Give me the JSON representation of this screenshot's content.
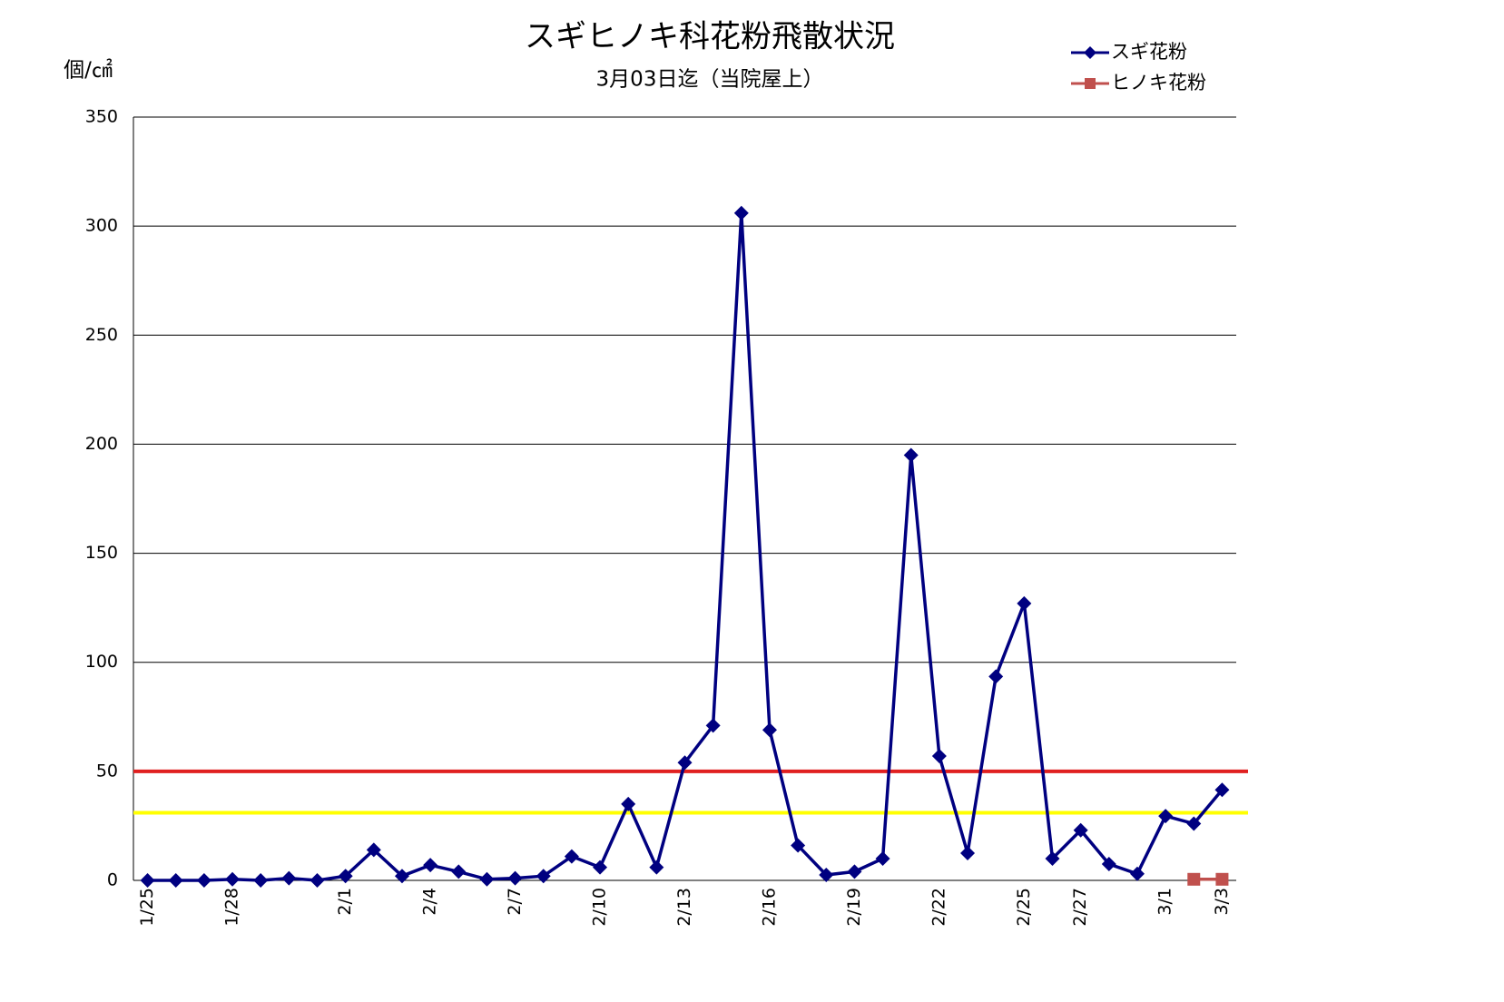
{
  "chart_data": {
    "type": "line",
    "title": "スギヒノキ科花粉飛散状況",
    "subtitle": "3月03日迄（当院屋上）",
    "y_label": "個/㎠",
    "categories": [
      "1/25",
      null,
      null,
      "1/28",
      null,
      null,
      null,
      "2/1",
      null,
      null,
      "2/4",
      null,
      null,
      "2/7",
      null,
      null,
      "2/10",
      null,
      null,
      "2/13",
      null,
      null,
      "2/16",
      null,
      null,
      "2/19",
      null,
      null,
      "2/22",
      null,
      null,
      "2/25",
      null,
      "2/27",
      null,
      null,
      "3/1",
      null,
      "3/3"
    ],
    "series": [
      {
        "name": "スギ花粉",
        "color": "#000080",
        "marker": "diamond",
        "values": [
          0,
          0,
          0,
          0.5,
          0,
          1,
          0,
          2,
          14,
          2,
          7,
          4,
          0.5,
          1,
          2,
          11,
          6,
          35,
          6,
          54,
          71,
          306,
          69,
          16,
          2.5,
          4,
          10,
          195,
          57,
          12.5,
          93.5,
          127,
          10,
          23,
          7.5,
          3,
          29.5,
          26,
          41.5
        ]
      },
      {
        "name": "ヒノキ花粉",
        "color": "#c0504d",
        "marker": "square",
        "values": [
          null,
          null,
          null,
          null,
          null,
          null,
          null,
          null,
          null,
          null,
          null,
          null,
          null,
          null,
          null,
          null,
          null,
          null,
          null,
          null,
          null,
          null,
          null,
          null,
          null,
          null,
          null,
          null,
          null,
          null,
          null,
          null,
          null,
          null,
          null,
          null,
          null,
          0.5,
          0.5
        ]
      }
    ],
    "reference_lines": [
      {
        "value": 50,
        "color": "#e02020"
      },
      {
        "value": 31,
        "color": "#ffff00"
      }
    ],
    "ylim": [
      0,
      350
    ],
    "yticks": [
      0,
      50,
      100,
      150,
      200,
      250,
      300,
      350
    ],
    "grid": true,
    "legend": "top-right"
  }
}
